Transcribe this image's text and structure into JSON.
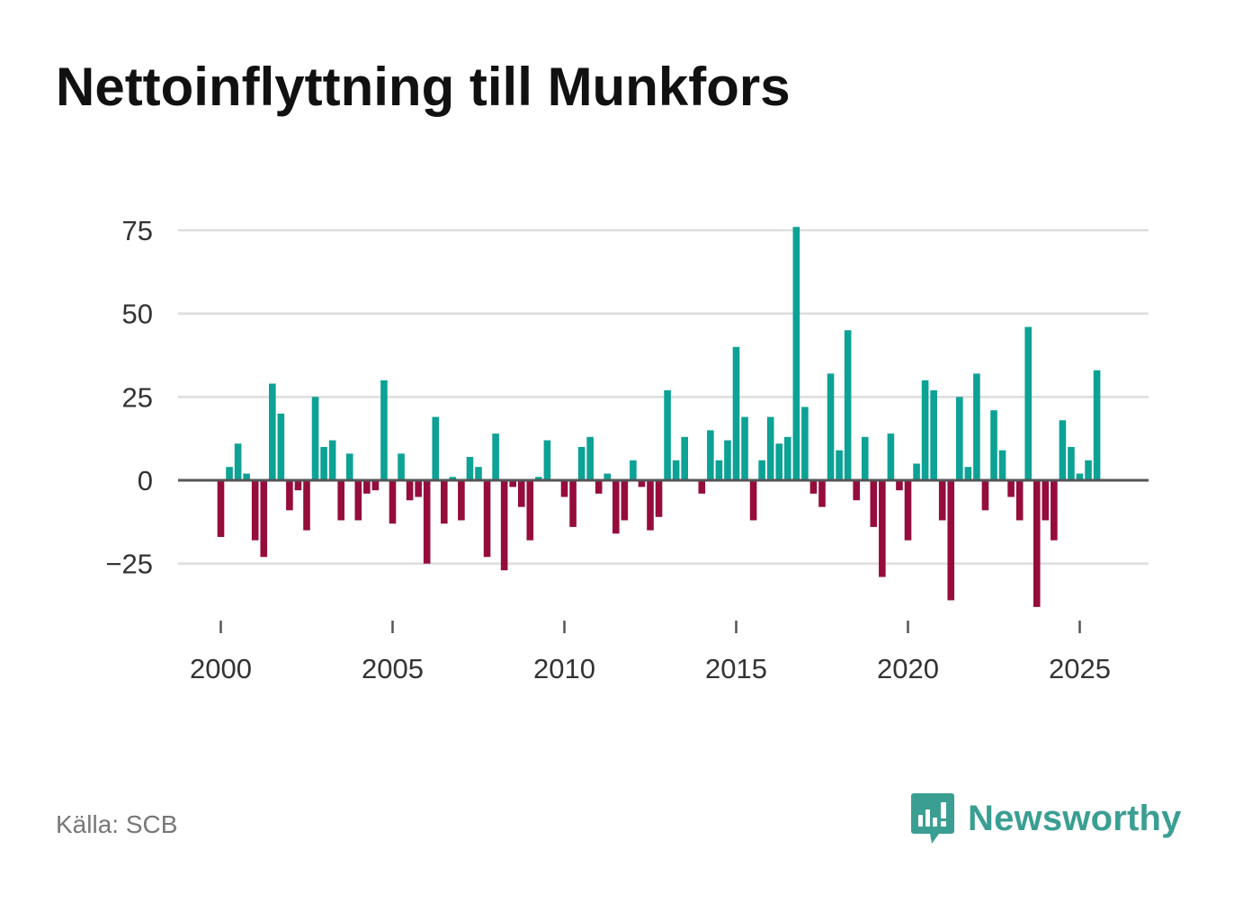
{
  "title": "Nettoinflyttning till Munkfors",
  "source": "Källa: SCB",
  "logo": {
    "text": "Newsworthy",
    "icon": "bar-chart-speech-bubble-icon",
    "color": "#3b9e93"
  },
  "colors": {
    "positive": "#0ca295",
    "negative": "#950c3d",
    "grid": "#dddddd",
    "zero_line": "#555555",
    "text": "#333333"
  },
  "chart_data": {
    "type": "bar",
    "title": "Nettoinflyttning till Munkfors",
    "xlabel": "",
    "ylabel": "",
    "xlim": [
      1999.0,
      2027.0
    ],
    "ylim": [
      -45,
      78
    ],
    "yticks": [
      -25,
      0,
      25,
      50,
      75
    ],
    "ytick_labels": [
      "−25",
      "0",
      "25",
      "50",
      "75"
    ],
    "xticks": [
      2000,
      2005,
      2010,
      2015,
      2020,
      2025
    ],
    "xtick_labels": [
      "2000",
      "2005",
      "2010",
      "2015",
      "2020",
      "2025"
    ],
    "grid": true,
    "series": [
      {
        "name": "Nettoinflyttning",
        "x": [
          2000.0,
          2000.25,
          2000.5,
          2000.75,
          2001.0,
          2001.25,
          2001.5,
          2001.75,
          2002.0,
          2002.25,
          2002.5,
          2002.75,
          2003.0,
          2003.25,
          2003.5,
          2003.75,
          2004.0,
          2004.25,
          2004.5,
          2004.75,
          2005.0,
          2005.25,
          2005.5,
          2005.75,
          2006.0,
          2006.25,
          2006.5,
          2006.75,
          2007.0,
          2007.25,
          2007.5,
          2007.75,
          2008.0,
          2008.25,
          2008.5,
          2008.75,
          2009.0,
          2009.25,
          2009.5,
          2009.75,
          2010.0,
          2010.25,
          2010.5,
          2010.75,
          2011.0,
          2011.25,
          2011.5,
          2011.75,
          2012.0,
          2012.25,
          2012.5,
          2012.75,
          2013.0,
          2013.25,
          2013.5,
          2013.75,
          2014.0,
          2014.25,
          2014.5,
          2014.75,
          2015.0,
          2015.25,
          2015.5,
          2015.75,
          2016.0,
          2016.25,
          2016.5,
          2016.75,
          2017.0,
          2017.25,
          2017.5,
          2017.75,
          2018.0,
          2018.25,
          2018.5,
          2018.75,
          2019.0,
          2019.25,
          2019.5,
          2019.75,
          2020.0,
          2020.25,
          2020.5,
          2020.75,
          2021.0,
          2021.25,
          2021.5,
          2021.75,
          2022.0,
          2022.25,
          2022.5,
          2022.75,
          2023.0,
          2023.25,
          2023.5,
          2023.75,
          2024.0,
          2024.25,
          2024.5,
          2024.75,
          2025.0,
          2025.25,
          2025.5
        ],
        "values": [
          -17,
          4,
          11,
          2,
          -18,
          -23,
          29,
          20,
          -9,
          -3,
          -15,
          25,
          10,
          12,
          -12,
          8,
          -12,
          -4,
          -3,
          30,
          -13,
          8,
          -6,
          -5,
          -25,
          19,
          -13,
          1,
          -12,
          7,
          4,
          -23,
          14,
          -27,
          -2,
          -8,
          -18,
          1,
          12,
          0,
          -5,
          -14,
          10,
          13,
          -4,
          2,
          -16,
          -12,
          6,
          -2,
          -15,
          -11,
          27,
          6,
          13,
          0,
          -4,
          15,
          6,
          12,
          40,
          19,
          -12,
          6,
          19,
          11,
          13,
          76,
          22,
          -4,
          -8,
          32,
          9,
          45,
          -6,
          13,
          -14,
          -29,
          14,
          -3,
          -18,
          5,
          30,
          27,
          -12,
          -36,
          25,
          4,
          32,
          -9,
          21,
          9,
          -5,
          -12,
          46,
          -38,
          -12,
          -18,
          18,
          10,
          2,
          6,
          33
        ]
      }
    ]
  }
}
